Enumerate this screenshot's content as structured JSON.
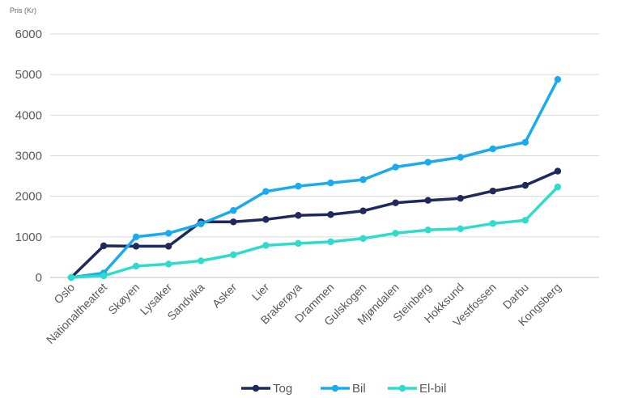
{
  "chart_data": {
    "type": "line",
    "ylabel": "Pris (Kr)",
    "xlabel": "",
    "ylim": [
      0,
      6000
    ],
    "yticks": [
      0,
      1000,
      2000,
      3000,
      4000,
      5000,
      6000
    ],
    "grid": "horizontal",
    "legend_position": "bottom",
    "categories": [
      "Oslo",
      "Nationaltheatret",
      "Skøyen",
      "Lysaker",
      "Sandvika",
      "Asker",
      "Lier",
      "Brakerøya",
      "Drammen",
      "Gulskogen",
      "Mjøndalen",
      "Steinberg",
      "Hokksund",
      "Vestfossen",
      "Darbu",
      "Kongsberg"
    ],
    "series": [
      {
        "name": "Tog",
        "color": "#1f2a5c",
        "values": [
          0,
          780,
          770,
          770,
          1370,
          1370,
          1430,
          1530,
          1550,
          1640,
          1840,
          1900,
          1950,
          2130,
          2270,
          2620
        ]
      },
      {
        "name": "Bil",
        "color": "#1aaaf0",
        "values": [
          0,
          110,
          1000,
          1090,
          1320,
          1650,
          2120,
          2250,
          2330,
          2410,
          2720,
          2840,
          2960,
          3170,
          3330,
          4880
        ]
      },
      {
        "name": "El-bil",
        "color": "#2fdccb",
        "values": [
          0,
          40,
          280,
          330,
          410,
          560,
          790,
          840,
          880,
          960,
          1090,
          1170,
          1200,
          1330,
          1410,
          2230
        ]
      }
    ]
  }
}
